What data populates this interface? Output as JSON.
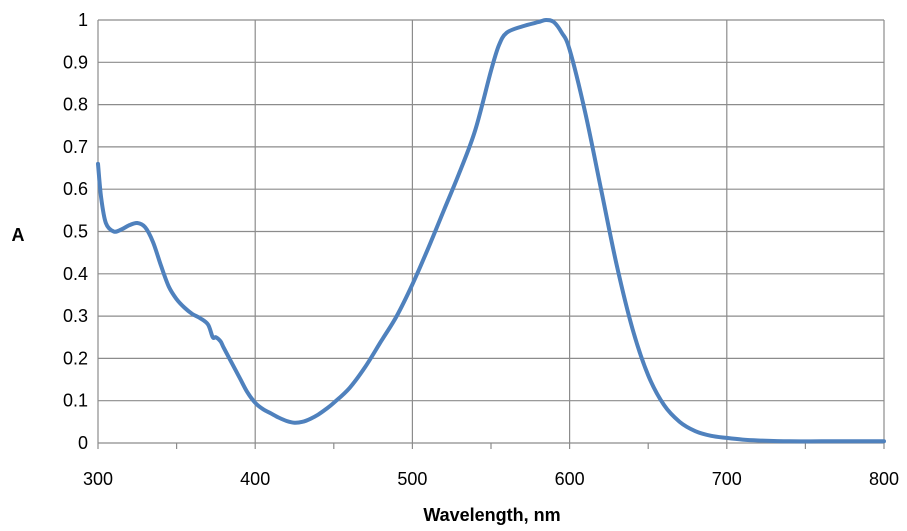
{
  "chart_data": {
    "type": "line",
    "title": "",
    "xlabel": "Wavelength, nm",
    "ylabel": "A",
    "xlim": [
      300,
      800
    ],
    "ylim": [
      0,
      1
    ],
    "x_ticks": [
      300,
      400,
      500,
      600,
      700,
      800
    ],
    "x_tick_labels": [
      "300",
      "400",
      "500",
      "600",
      "700",
      "800"
    ],
    "y_ticks": [
      0,
      0.1,
      0.2,
      0.3,
      0.4,
      0.5,
      0.6,
      0.7,
      0.8,
      0.9,
      1
    ],
    "y_tick_labels": [
      "0",
      "0.1",
      "0.2",
      "0.3",
      "0.4",
      "0.5",
      "0.6",
      "0.7",
      "0.8",
      "0.9",
      "1"
    ],
    "grid": true,
    "legend": "none",
    "series_color": "#4f81bd",
    "series": [
      {
        "x": [
          300,
          302,
          305,
          310,
          315,
          320,
          325,
          330,
          335,
          340,
          345,
          350,
          355,
          360,
          365,
          370,
          373,
          375,
          378,
          380,
          385,
          390,
          395,
          400,
          405,
          410,
          415,
          420,
          425,
          430,
          435,
          440,
          445,
          450,
          460,
          470,
          480,
          490,
          500,
          510,
          520,
          530,
          540,
          550,
          555,
          560,
          570,
          580,
          585,
          590,
          595,
          600,
          610,
          620,
          630,
          640,
          650,
          660,
          670,
          680,
          690,
          700,
          710,
          720,
          740,
          760,
          780,
          800
        ],
        "y": [
          0.66,
          0.58,
          0.52,
          0.5,
          0.505,
          0.515,
          0.52,
          0.51,
          0.475,
          0.42,
          0.37,
          0.34,
          0.32,
          0.305,
          0.295,
          0.28,
          0.25,
          0.25,
          0.24,
          0.225,
          0.19,
          0.155,
          0.12,
          0.095,
          0.08,
          0.07,
          0.06,
          0.052,
          0.048,
          0.05,
          0.057,
          0.067,
          0.08,
          0.095,
          0.13,
          0.18,
          0.24,
          0.3,
          0.375,
          0.46,
          0.55,
          0.64,
          0.74,
          0.88,
          0.94,
          0.97,
          0.985,
          0.995,
          1.0,
          0.995,
          0.97,
          0.93,
          0.78,
          0.6,
          0.42,
          0.27,
          0.16,
          0.09,
          0.05,
          0.028,
          0.017,
          0.012,
          0.008,
          0.006,
          0.004,
          0.004,
          0.004,
          0.004
        ]
      }
    ]
  }
}
